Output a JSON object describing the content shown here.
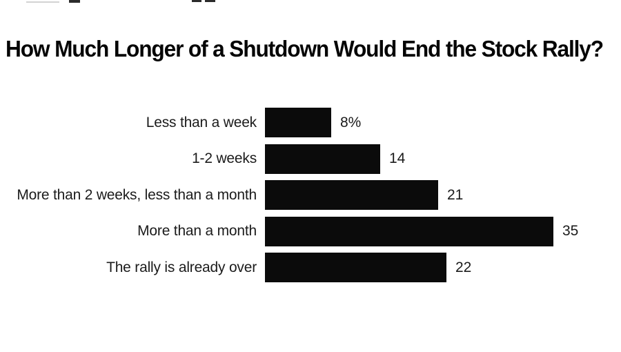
{
  "page": {
    "background_color": "#ffffff"
  },
  "cropped_top_text": {
    "note": "bottom fragments of a cut-off text line at the top edge of the frame"
  },
  "chart_data": {
    "type": "bar",
    "orientation": "horizontal",
    "title": "How Much Longer of a Shutdown Would End the Stock Rally?",
    "categories": [
      "Less than a week",
      "1-2 weeks",
      "More than 2 weeks, less than a month",
      "More than a month",
      "The rally is already over"
    ],
    "values": [
      8,
      14,
      21,
      35,
      22
    ],
    "value_labels": [
      "8%",
      "14",
      "21",
      "35",
      "22"
    ],
    "xlim": [
      0,
      35
    ],
    "grid": false,
    "legend": false,
    "bar_color": "#0b0b0b",
    "label_color": "#1b1b1b",
    "title_color": "#050505"
  }
}
